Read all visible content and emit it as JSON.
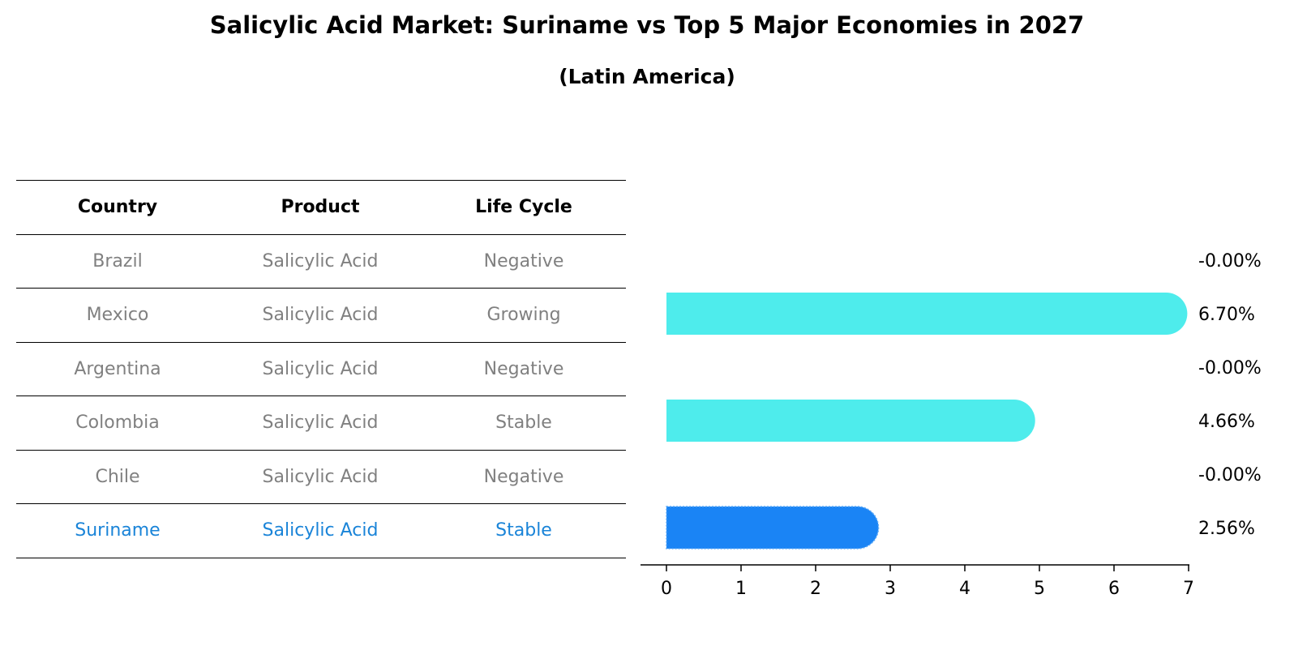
{
  "title": "Salicylic Acid Market: Suriname vs Top 5 Major Economies in 2027",
  "subtitle": "(Latin America)",
  "table": {
    "headers": [
      "Country",
      "Product",
      "Life Cycle"
    ],
    "rows": [
      {
        "country": "Brazil",
        "product": "Salicylic Acid",
        "life_cycle": "Negative"
      },
      {
        "country": "Mexico",
        "product": "Salicylic Acid",
        "life_cycle": "Growing"
      },
      {
        "country": "Argentina",
        "product": "Salicylic Acid",
        "life_cycle": "Negative"
      },
      {
        "country": "Colombia",
        "product": "Salicylic Acid",
        "life_cycle": "Stable"
      },
      {
        "country": "Chile",
        "product": "Salicylic Acid",
        "life_cycle": "Negative"
      },
      {
        "country": "Suriname",
        "product": "Salicylic Acid",
        "life_cycle": "Stable"
      }
    ],
    "highlight_row": "Suriname"
  },
  "colors": {
    "bar": "#4eecec",
    "highlight_bar": "#1a84f5",
    "highlight_text": "#1a84d8",
    "muted_text": "#808080"
  },
  "chart_data": {
    "type": "bar",
    "orientation": "horizontal",
    "categories": [
      "Brazil",
      "Mexico",
      "Argentina",
      "Colombia",
      "Chile",
      "Suriname"
    ],
    "values": [
      0.0,
      6.7,
      0.0,
      4.66,
      0.0,
      2.56
    ],
    "data_labels": [
      "-0.00%",
      "6.70%",
      "-0.00%",
      "4.66%",
      "-0.00%",
      "2.56%"
    ],
    "highlight": "Suriname",
    "xlim": [
      0,
      7
    ],
    "xticks": [
      0,
      1,
      2,
      3,
      4,
      5,
      6,
      7
    ],
    "grid": false
  }
}
